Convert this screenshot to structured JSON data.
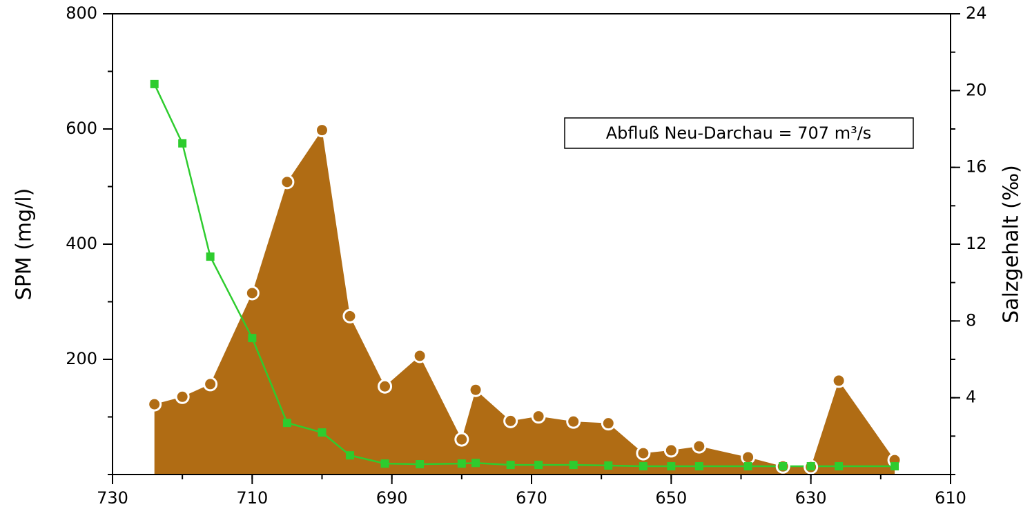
{
  "chart_data": {
    "type": "area-line",
    "x": [
      724,
      720,
      716,
      710,
      705,
      700,
      696,
      691,
      686,
      680,
      678,
      673,
      669,
      664,
      659,
      654,
      650,
      646,
      639,
      634,
      630,
      626,
      618
    ],
    "series": [
      {
        "name": "SPM",
        "color": "#b06c14",
        "values": [
          122,
          135,
          157,
          315,
          508,
          598,
          275,
          153,
          206,
          61,
          147,
          93,
          101,
          92,
          89,
          37,
          42,
          49,
          30,
          14,
          13,
          163,
          25
        ]
      },
      {
        "name": "Salzgehalt",
        "color": "#2ecc2e",
        "axis": "y2",
        "values": [
          20.34,
          17.25,
          11.35,
          7.11,
          2.69,
          2.19,
          1.0,
          0.57,
          0.54,
          0.57,
          0.6,
          0.5,
          0.5,
          0.5,
          0.47,
          0.43,
          0.43,
          0.43,
          0.43,
          0.43,
          0.43,
          0.43,
          0.43
        ]
      }
    ],
    "xlim": [
      730,
      610
    ],
    "xticks": [
      730,
      710,
      690,
      670,
      650,
      630,
      610
    ],
    "ylim": [
      0,
      800
    ],
    "yticks": [
      200,
      400,
      600,
      800
    ],
    "y2lim": [
      0,
      24
    ],
    "y2ticks": [
      4,
      8,
      12,
      16,
      20,
      24
    ],
    "ylabel": "SPM (mg/l)",
    "y2label": "Salzgehalt (‰)",
    "annotation": "Abfluß Neu-Darchau = 707 m³/s"
  }
}
